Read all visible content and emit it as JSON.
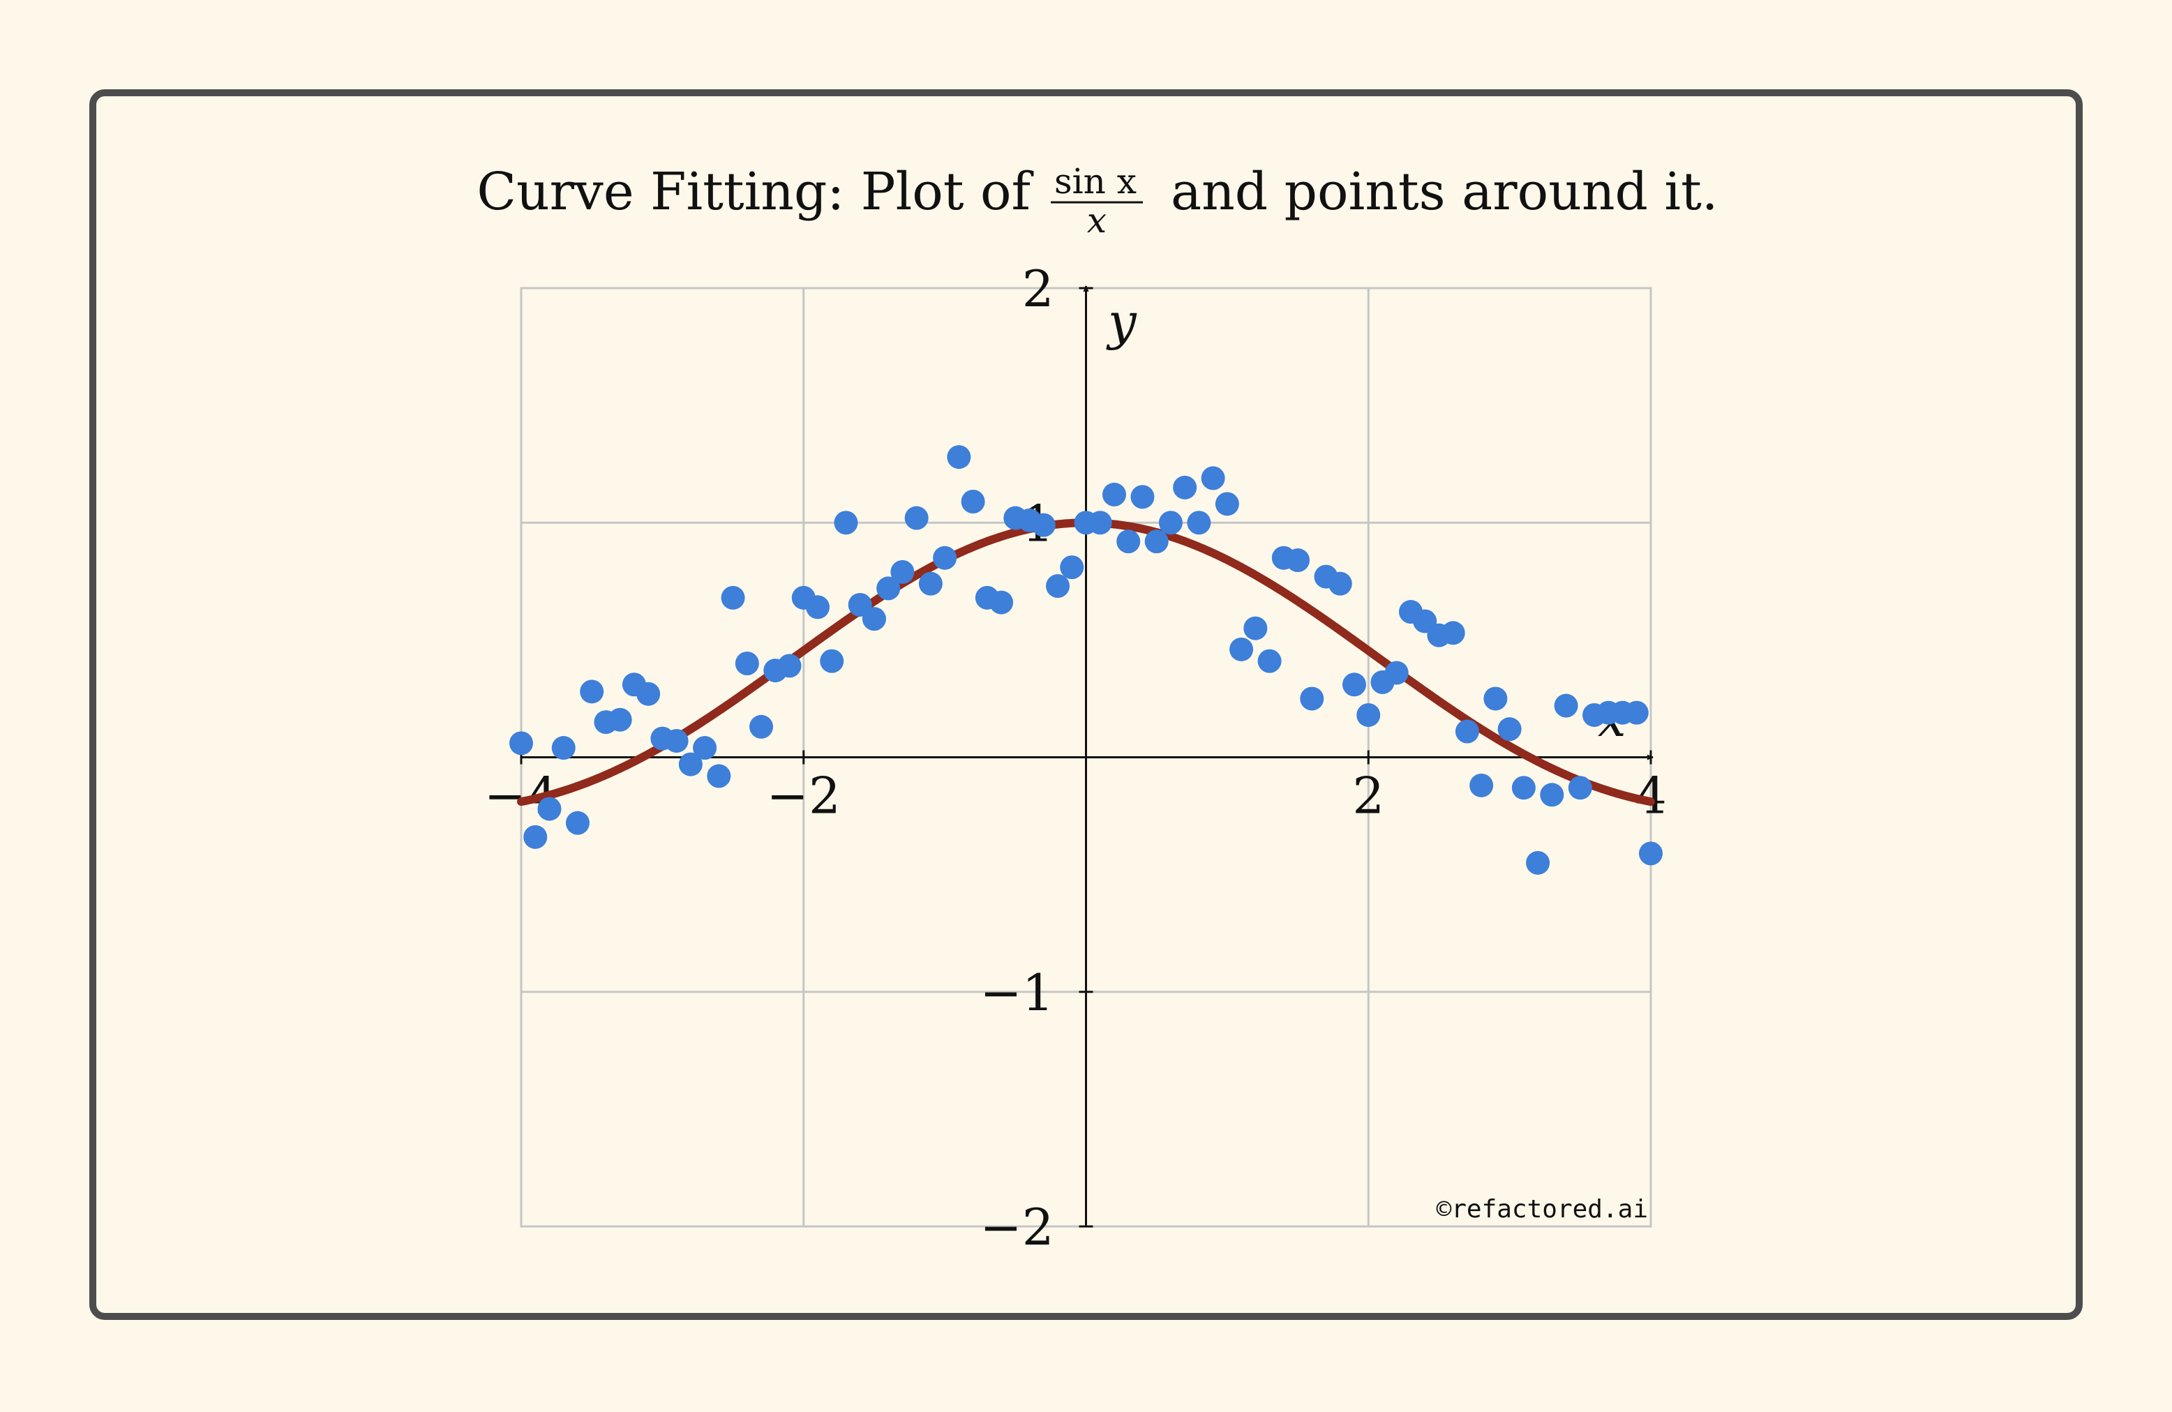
{
  "chart_data": {
    "type": "scatter",
    "title": {
      "prefix": "Curve Fitting: Plot of",
      "frac_numerator": "sin x",
      "frac_denominator": "x",
      "suffix": "and points around it."
    },
    "xlabel": "x",
    "ylabel": "y",
    "xlim": [
      -4,
      4
    ],
    "ylim": [
      -2,
      2
    ],
    "grid": true,
    "x_ticks": [
      {
        "value": -4,
        "label": "−4"
      },
      {
        "value": -2,
        "label": "−2"
      },
      {
        "value": 2,
        "label": "2"
      },
      {
        "value": 4,
        "label": "4"
      }
    ],
    "y_ticks": [
      {
        "value": -2,
        "label": "−2"
      },
      {
        "value": -1,
        "label": "−1"
      },
      {
        "value": 1,
        "label": "1"
      },
      {
        "value": 2,
        "label": "2"
      }
    ],
    "watermark": "©refactored.ai",
    "curve": {
      "function": "sin(x)/x",
      "color": "#8f2a1c"
    },
    "points_color": "#3d7fd9",
    "series": [
      {
        "x": [
          -4.0,
          -3.9,
          -3.8,
          -3.7,
          -3.6,
          -3.5,
          -3.4,
          -3.3,
          -3.2,
          -3.1,
          -3.0,
          -2.9,
          -2.8,
          -2.7,
          -2.6,
          -2.5,
          -2.4,
          -2.3,
          -2.2,
          -2.1,
          -2.0,
          -1.9,
          -1.8,
          -1.7,
          -1.6,
          -1.5,
          -1.4,
          -1.3,
          -1.2,
          -1.1,
          -1.0,
          -0.9,
          -0.8,
          -0.7,
          -0.6,
          -0.5,
          -0.4,
          -0.3,
          -0.2,
          -0.1,
          0.0,
          0.1,
          0.2,
          0.3,
          0.4,
          0.5,
          0.6,
          0.7,
          0.8,
          0.9,
          1.0,
          1.1,
          1.2,
          1.3,
          1.4,
          1.5,
          1.6,
          1.7,
          1.8,
          1.9,
          2.0,
          2.1,
          2.2,
          2.3,
          2.4,
          2.5,
          2.6,
          2.7,
          2.8,
          2.9,
          3.0,
          3.1,
          3.2,
          3.3,
          3.4,
          3.5,
          3.6,
          3.7,
          3.8,
          3.9,
          4.0
        ],
        "y": [
          0.06,
          -0.34,
          -0.22,
          0.04,
          -0.28,
          0.28,
          0.15,
          0.16,
          0.31,
          0.27,
          0.08,
          0.07,
          -0.03,
          0.04,
          -0.08,
          0.68,
          0.4,
          0.13,
          0.37,
          0.39,
          0.68,
          0.64,
          0.41,
          1.0,
          0.65,
          0.59,
          0.72,
          0.79,
          1.02,
          0.74,
          0.85,
          1.28,
          1.09,
          0.68,
          0.66,
          1.02,
          1.01,
          0.99,
          0.73,
          0.81,
          1.0,
          1.0,
          1.12,
          0.92,
          1.11,
          0.92,
          1.0,
          1.15,
          1.0,
          1.19,
          1.08,
          0.46,
          0.55,
          0.41,
          0.85,
          0.84,
          0.25,
          0.77,
          0.74,
          0.31,
          0.18,
          0.32,
          0.36,
          0.62,
          0.58,
          0.52,
          0.53,
          0.11,
          -0.12,
          0.25,
          0.12,
          -0.13,
          -0.45,
          -0.16,
          0.22,
          -0.13,
          0.18,
          0.19,
          0.19,
          0.19,
          -0.41
        ]
      }
    ]
  }
}
